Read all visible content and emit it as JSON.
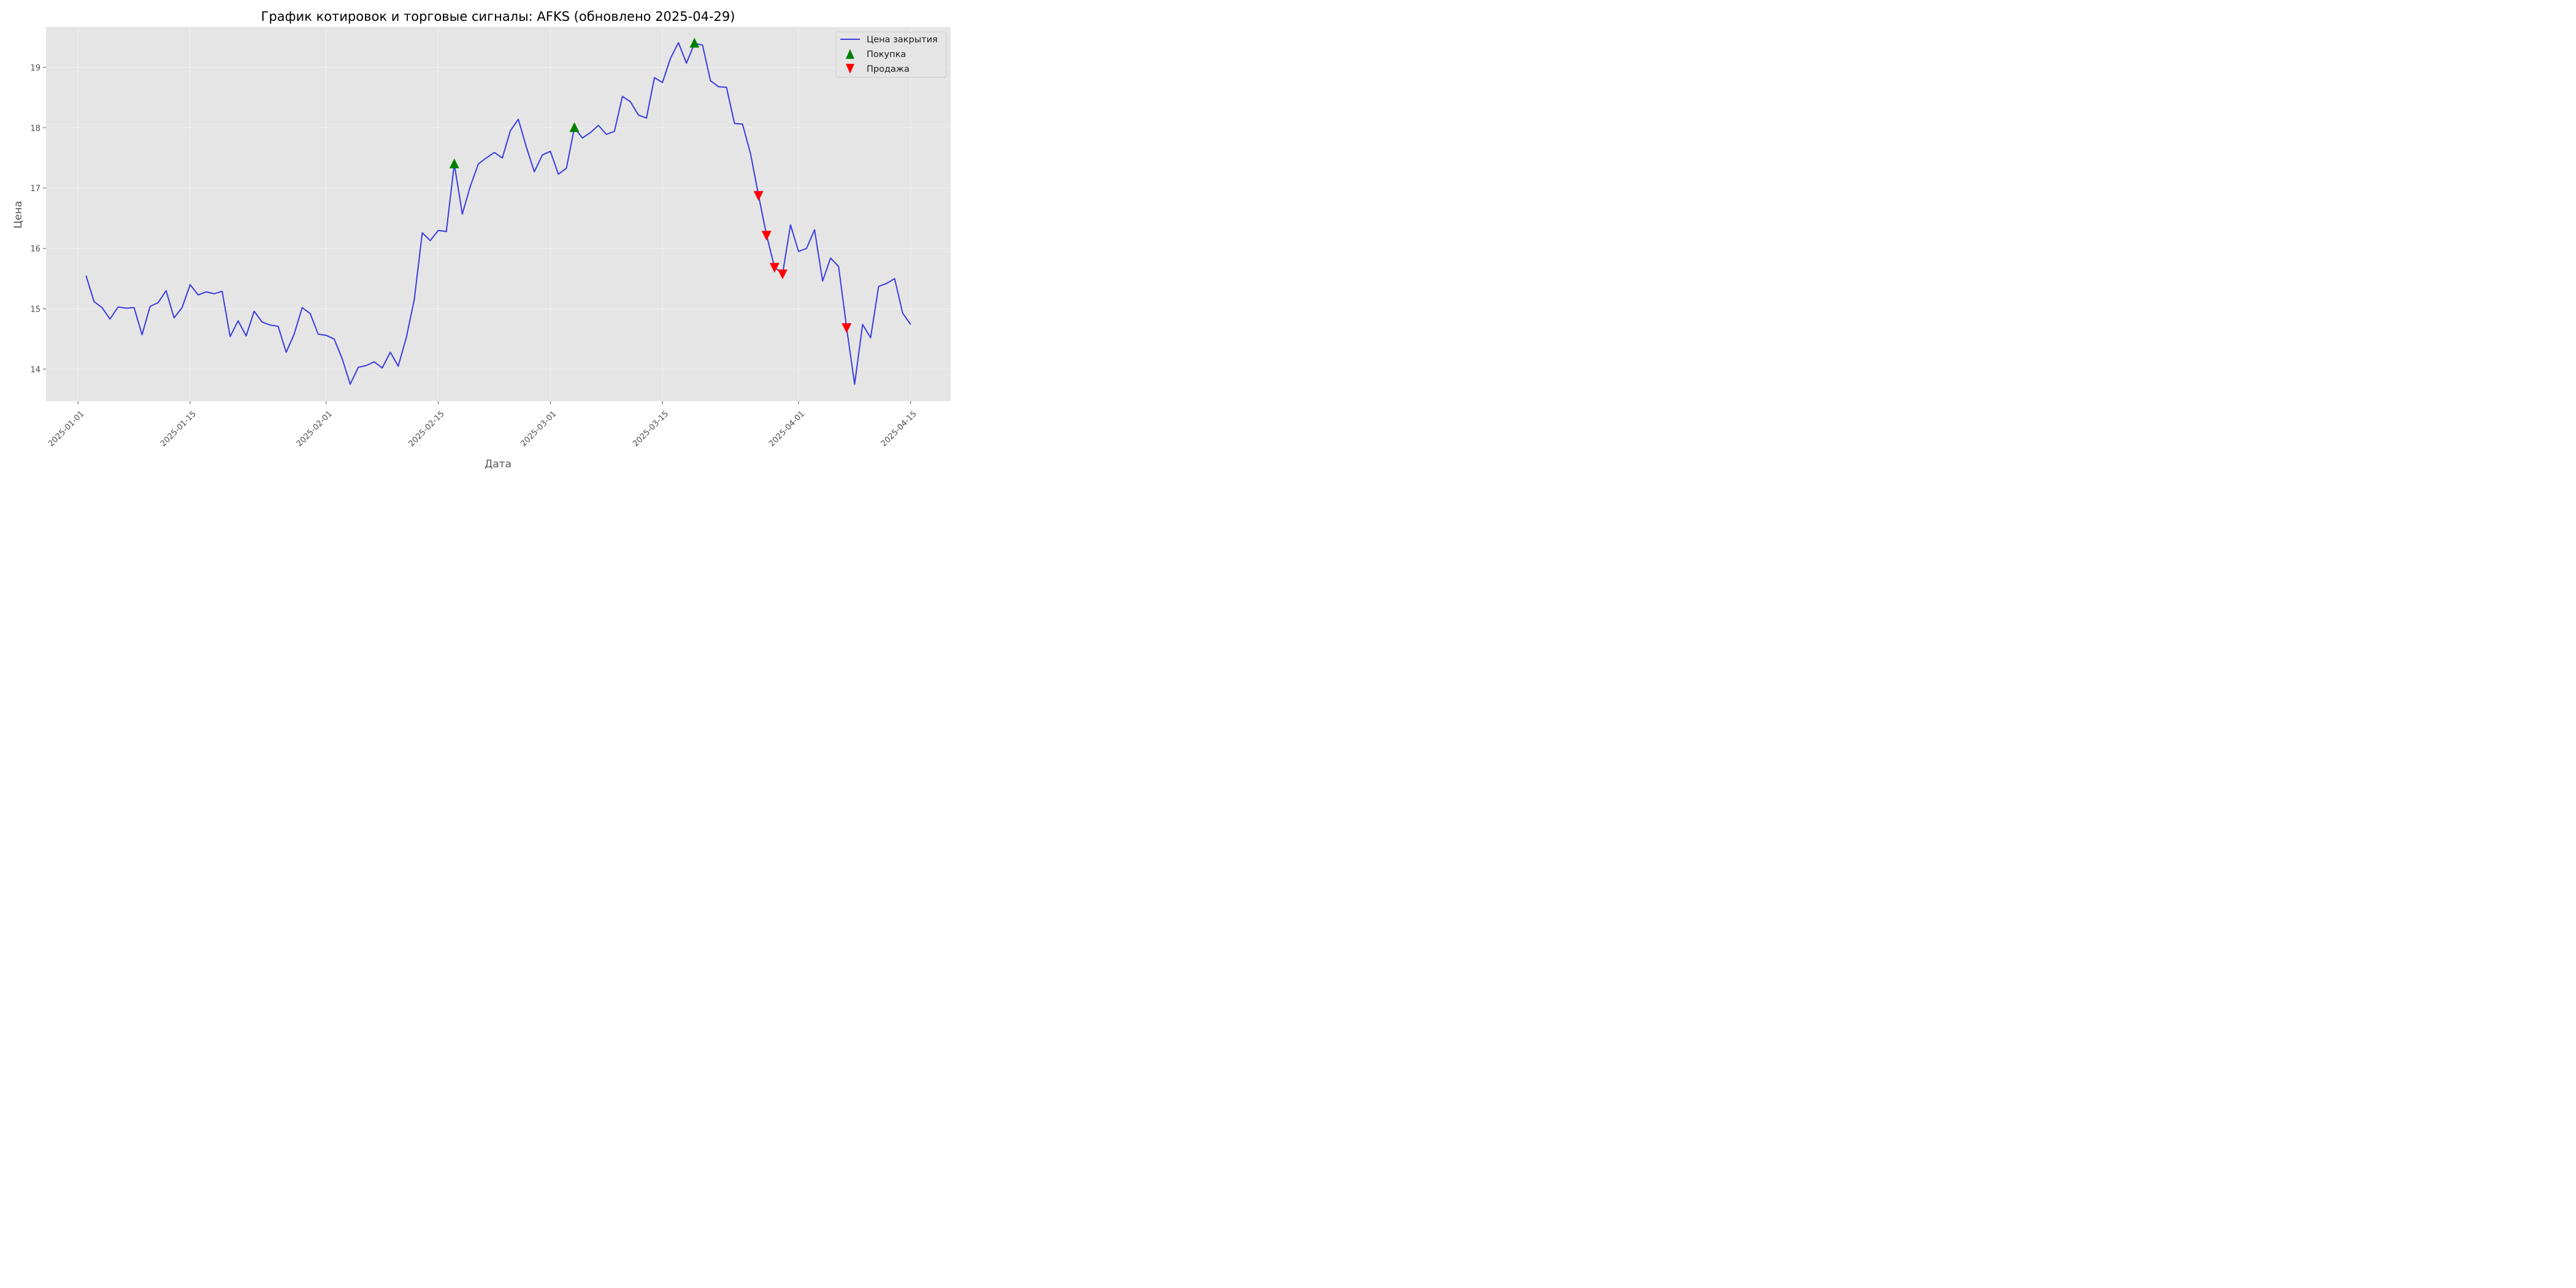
{
  "chart_data": {
    "type": "line",
    "title": "График котировок и торговые сигналы: AFKS (обновлено 2025-04-29)",
    "xlabel": "Дата",
    "ylabel": "Цена",
    "xlim": [
      "2024-12-28",
      "2025-04-20"
    ],
    "ylim": [
      13.47,
      19.67
    ],
    "x_ticks": [
      "2025-01-01",
      "2025-01-15",
      "2025-02-01",
      "2025-02-15",
      "2025-03-01",
      "2025-03-15",
      "2025-04-01",
      "2025-04-15"
    ],
    "y_ticks": [
      14,
      15,
      16,
      17,
      18,
      19
    ],
    "grid": true,
    "legend_position": "top-right",
    "legend": [
      {
        "key": "close",
        "label": "Цена закрытия"
      },
      {
        "key": "buy",
        "label": "Покупка"
      },
      {
        "key": "sell",
        "label": "Продажа"
      }
    ],
    "colors": {
      "background": "#e5e5e5",
      "grid": "#f2f2f2",
      "close": "#3a3ae0",
      "buy": "#008000",
      "sell": "#ff0000"
    },
    "series": [
      {
        "key": "close",
        "name": "Цена закрытия",
        "x": [
          "2025-01-02",
          "2025-01-03",
          "2025-01-04",
          "2025-01-05",
          "2025-01-06",
          "2025-01-07",
          "2025-01-08",
          "2025-01-09",
          "2025-01-10",
          "2025-01-11",
          "2025-01-12",
          "2025-01-13",
          "2025-01-14",
          "2025-01-15",
          "2025-01-16",
          "2025-01-17",
          "2025-01-18",
          "2025-01-19",
          "2025-01-20",
          "2025-01-21",
          "2025-01-22",
          "2025-01-23",
          "2025-01-24",
          "2025-01-25",
          "2025-01-26",
          "2025-01-27",
          "2025-01-28",
          "2025-01-29",
          "2025-01-30",
          "2025-01-31",
          "2025-02-01",
          "2025-02-02",
          "2025-02-03",
          "2025-02-04",
          "2025-02-05",
          "2025-02-06",
          "2025-02-07",
          "2025-02-08",
          "2025-02-09",
          "2025-02-10",
          "2025-02-11",
          "2025-02-12",
          "2025-02-13",
          "2025-02-14",
          "2025-02-15",
          "2025-02-16",
          "2025-02-17",
          "2025-02-18",
          "2025-02-19",
          "2025-02-20",
          "2025-02-21",
          "2025-02-22",
          "2025-02-23",
          "2025-02-24",
          "2025-02-25",
          "2025-02-26",
          "2025-02-27",
          "2025-02-28",
          "2025-03-01",
          "2025-03-02",
          "2025-03-03",
          "2025-03-04",
          "2025-03-05",
          "2025-03-06",
          "2025-03-07",
          "2025-03-08",
          "2025-03-09",
          "2025-03-10",
          "2025-03-11",
          "2025-03-12",
          "2025-03-13",
          "2025-03-14",
          "2025-03-15",
          "2025-03-16",
          "2025-03-17",
          "2025-03-18",
          "2025-03-19",
          "2025-03-20",
          "2025-03-21",
          "2025-03-22",
          "2025-03-23",
          "2025-03-24",
          "2025-03-25",
          "2025-03-26",
          "2025-03-27",
          "2025-03-28",
          "2025-03-29",
          "2025-03-30",
          "2025-03-31",
          "2025-04-01",
          "2025-04-02",
          "2025-04-03",
          "2025-04-04",
          "2025-04-05",
          "2025-04-06",
          "2025-04-07",
          "2025-04-08",
          "2025-04-09",
          "2025-04-10",
          "2025-04-11",
          "2025-04-12",
          "2025-04-13",
          "2025-04-14",
          "2025-04-15"
        ],
        "values": [
          15.55,
          15.12,
          15.02,
          14.83,
          15.03,
          15.01,
          15.02,
          14.57,
          15.04,
          15.1,
          15.3,
          14.85,
          15.02,
          15.4,
          15.23,
          15.28,
          15.25,
          15.29,
          14.54,
          14.8,
          14.55,
          14.96,
          14.78,
          14.73,
          14.71,
          14.28,
          14.58,
          15.02,
          14.92,
          14.58,
          14.56,
          14.5,
          14.17,
          13.75,
          14.03,
          14.06,
          14.12,
          14.02,
          14.28,
          14.05,
          14.52,
          15.15,
          16.26,
          16.13,
          16.3,
          16.28,
          17.4,
          16.57,
          17.03,
          17.4,
          17.5,
          17.59,
          17.5,
          17.95,
          18.14,
          17.68,
          17.27,
          17.55,
          17.61,
          17.23,
          17.33,
          18.0,
          17.83,
          17.92,
          18.04,
          17.89,
          17.94,
          18.52,
          18.43,
          18.21,
          18.16,
          18.83,
          18.75,
          19.15,
          19.41,
          19.07,
          19.4,
          19.37,
          18.78,
          18.68,
          18.67,
          18.07,
          18.06,
          17.57,
          16.88,
          16.22,
          15.69,
          15.58,
          16.39,
          15.95,
          16.0,
          16.31,
          15.46,
          15.84,
          15.7,
          14.69,
          13.75,
          14.74,
          14.52,
          15.37,
          15.42,
          15.5,
          14.93,
          14.74
        ]
      },
      {
        "key": "buy",
        "name": "Покупка",
        "x": [
          "2025-02-17",
          "2025-03-04",
          "2025-03-19"
        ],
        "values": [
          17.4,
          18.0,
          19.4
        ]
      },
      {
        "key": "sell",
        "name": "Продажа",
        "x": [
          "2025-03-27",
          "2025-03-28",
          "2025-03-29",
          "2025-03-30",
          "2025-04-07"
        ],
        "values": [
          16.88,
          16.22,
          15.69,
          15.58,
          14.69
        ]
      }
    ]
  }
}
